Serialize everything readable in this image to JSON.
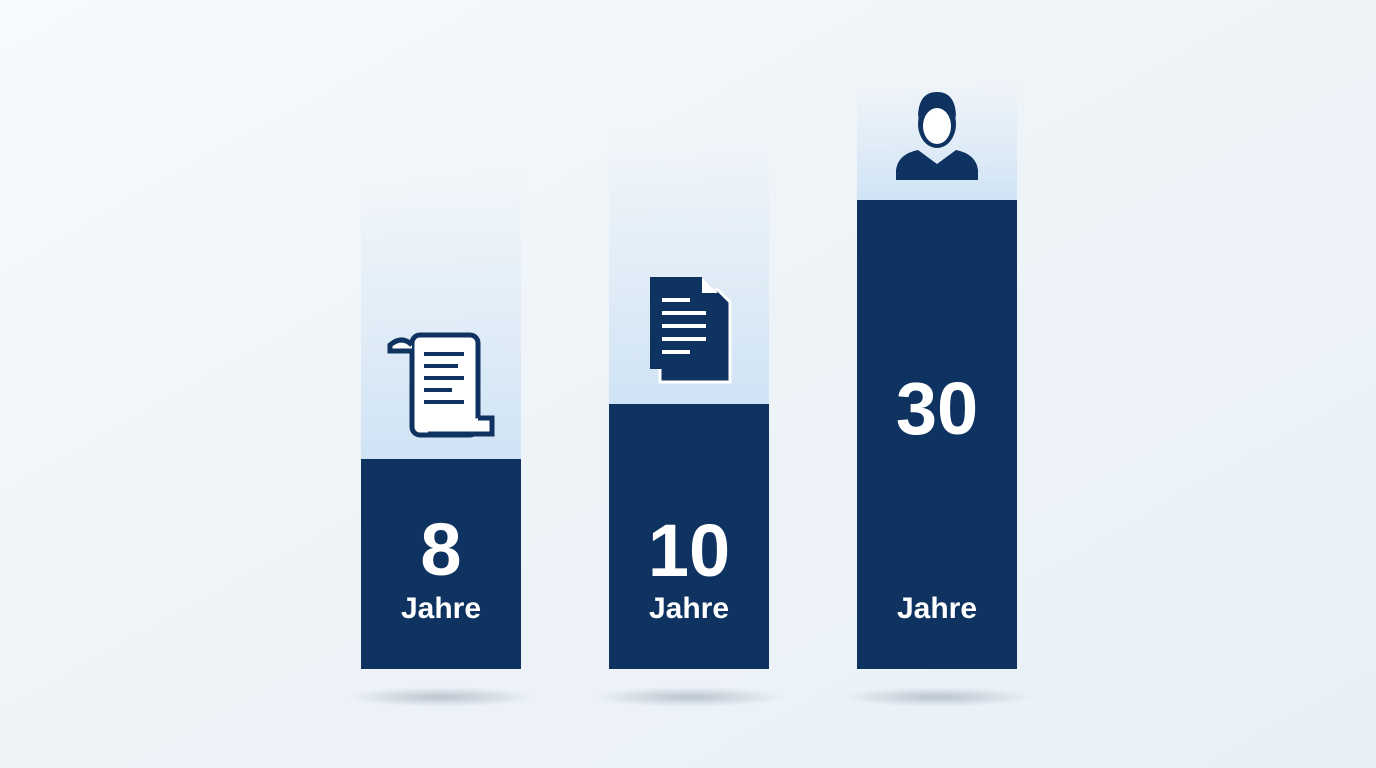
{
  "items": [
    {
      "value": 8,
      "unit": "Jahre"
    },
    {
      "value": 10,
      "unit": "Jahre"
    },
    {
      "value": 30,
      "unit": "Jahre"
    }
  ]
}
